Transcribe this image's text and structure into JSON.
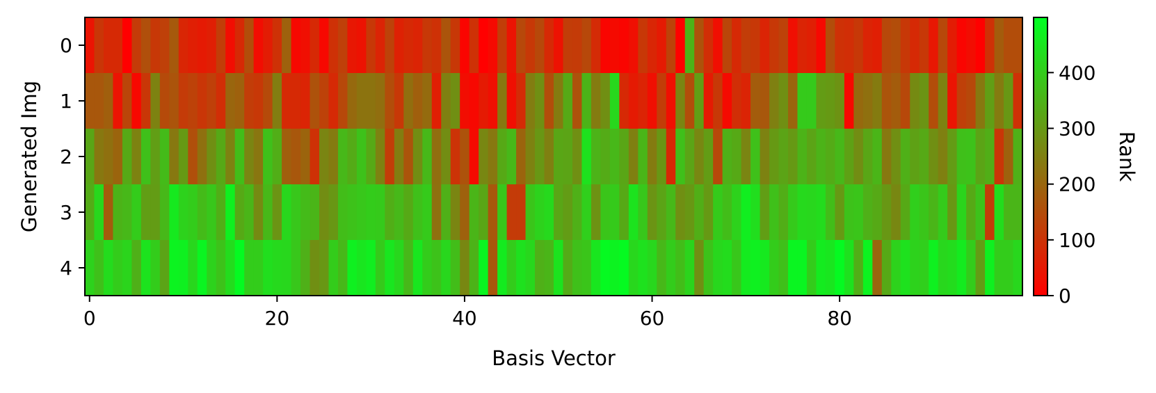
{
  "chart_data": {
    "type": "heatmap",
    "title": "",
    "xlabel": "Basis Vector",
    "ylabel": "Generated Img",
    "x_range": [
      0,
      99
    ],
    "y_categories": [
      "0",
      "1",
      "2",
      "3",
      "4"
    ],
    "x_ticks": [
      0,
      20,
      40,
      60,
      80
    ],
    "colorbar": {
      "label": "Rank",
      "range": [
        0,
        499
      ],
      "ticks": [
        0,
        100,
        200,
        300,
        400
      ],
      "colors": [
        "#ff0000",
        "#00ff22"
      ]
    },
    "rows": [
      {
        "name": "0",
        "values": [
          40,
          105,
          80,
          80,
          0,
          115,
          155,
          110,
          125,
          175,
          75,
          60,
          50,
          60,
          120,
          25,
          80,
          150,
          25,
          55,
          95,
          190,
          15,
          30,
          80,
          15,
          95,
          125,
          45,
          35,
          110,
          70,
          130,
          65,
          80,
          70,
          110,
          95,
          165,
          110,
          10,
          95,
          0,
          20,
          120,
          40,
          140,
          110,
          140,
          80,
          35,
          120,
          115,
          140,
          85,
          10,
          20,
          10,
          30,
          110,
          75,
          50,
          130,
          0,
          350,
          160,
          90,
          30,
          135,
          80,
          120,
          110,
          70,
          110,
          130,
          30,
          70,
          60,
          15,
          150,
          95,
          90,
          110,
          70,
          60,
          140,
          150,
          110,
          80,
          110,
          45,
          140,
          55,
          10,
          25,
          0,
          95,
          180,
          150,
          150
        ]
      },
      {
        "name": "1",
        "values": [
          170,
          170,
          185,
          40,
          135,
          15,
          105,
          255,
          145,
          165,
          115,
          130,
          105,
          125,
          90,
          200,
          190,
          120,
          110,
          145,
          245,
          80,
          80,
          70,
          160,
          130,
          80,
          140,
          205,
          225,
          225,
          215,
          150,
          110,
          215,
          185,
          210,
          60,
          250,
          280,
          25,
          15,
          50,
          30,
          235,
          30,
          85,
          245,
          280,
          150,
          240,
          330,
          160,
          350,
          240,
          280,
          420,
          80,
          50,
          70,
          30,
          120,
          30,
          260,
          150,
          310,
          50,
          110,
          20,
          90,
          70,
          180,
          170,
          250,
          280,
          195,
          395,
          395,
          305,
          300,
          285,
          15,
          205,
          220,
          240,
          165,
          180,
          140,
          270,
          290,
          150,
          255,
          40,
          125,
          140,
          235,
          310,
          240,
          295,
          95
        ]
      },
      {
        "name": "2",
        "values": [
          325,
          235,
          220,
          195,
          330,
          255,
          375,
          310,
          365,
          235,
          300,
          155,
          220,
          280,
          330,
          255,
          370,
          260,
          230,
          375,
          340,
          185,
          170,
          195,
          95,
          260,
          240,
          360,
          335,
          380,
          330,
          255,
          120,
          245,
          165,
          275,
          360,
          215,
          275,
          100,
          160,
          20,
          265,
          235,
          330,
          360,
          195,
          255,
          295,
          250,
          325,
          320,
          280,
          440,
          350,
          335,
          360,
          325,
          250,
          355,
          240,
          295,
          80,
          375,
          320,
          265,
          305,
          140,
          345,
          330,
          260,
          375,
          255,
          300,
          320,
          300,
          350,
          320,
          350,
          335,
          360,
          315,
          275,
          325,
          355,
          235,
          280,
          345,
          315,
          330,
          280,
          250,
          305,
          375,
          380,
          320,
          340,
          105,
          190,
          345
        ]
      },
      {
        "name": "3",
        "values": [
          335,
          420,
          180,
          350,
          360,
          400,
          310,
          305,
          360,
          455,
          410,
          400,
          365,
          390,
          340,
          470,
          330,
          355,
          270,
          360,
          290,
          420,
          390,
          365,
          355,
          275,
          295,
          370,
          380,
          390,
          400,
          395,
          340,
          360,
          330,
          375,
          395,
          220,
          345,
          260,
          190,
          355,
          325,
          170,
          390,
          115,
          115,
          385,
          410,
          425,
          325,
          305,
          345,
          405,
          285,
          385,
          395,
          330,
          445,
          390,
          290,
          320,
          360,
          280,
          295,
          340,
          300,
          395,
          370,
          410,
          465,
          435,
          310,
          375,
          340,
          395,
          425,
          420,
          430,
          370,
          300,
          380,
          385,
          345,
          330,
          295,
          265,
          330,
          405,
          385,
          355,
          395,
          295,
          415,
          330,
          380,
          115,
          430,
          355,
          355
        ]
      },
      {
        "name": "4",
        "values": [
          410,
          375,
          430,
          400,
          415,
          345,
          445,
          400,
          320,
          475,
          470,
          420,
          480,
          410,
          380,
          430,
          490,
          400,
          400,
          435,
          425,
          420,
          390,
          345,
          280,
          295,
          400,
          360,
          470,
          450,
          465,
          395,
          450,
          420,
          360,
          450,
          400,
          380,
          420,
          370,
          265,
          350,
          480,
          170,
          460,
          400,
          440,
          420,
          345,
          355,
          445,
          335,
          375,
          385,
          450,
          490,
          475,
          490,
          420,
          440,
          420,
          360,
          400,
          370,
          415,
          280,
          380,
          420,
          430,
          390,
          460,
          470,
          455,
          400,
          375,
          480,
          480,
          400,
          460,
          450,
          490,
          440,
          340,
          475,
          200,
          330,
          410,
          440,
          410,
          405,
          470,
          420,
          430,
          460,
          400,
          305,
          470,
          400,
          400,
          420
        ]
      }
    ]
  }
}
